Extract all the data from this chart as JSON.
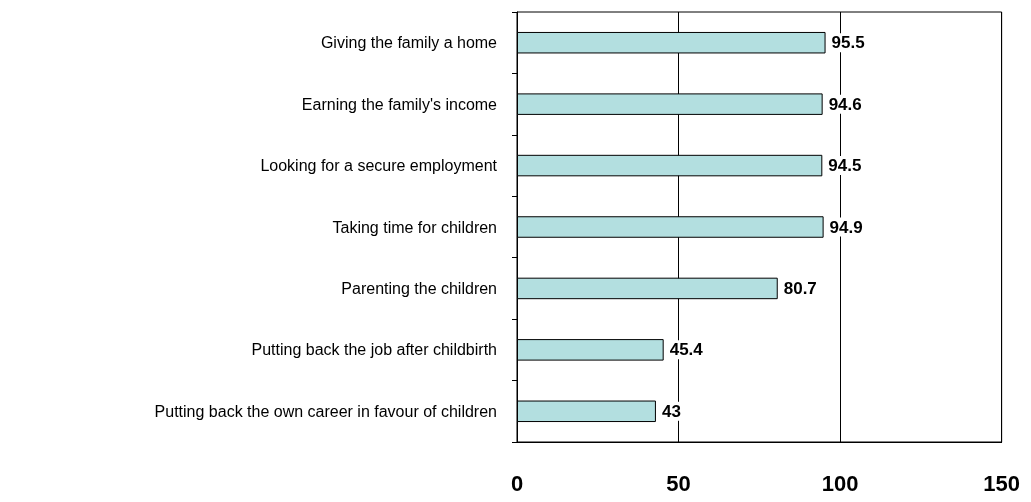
{
  "chart_data": {
    "type": "bar",
    "orientation": "horizontal",
    "categories": [
      "Giving the family a home",
      "Earning the family's income",
      "Looking for a secure employment",
      "Taking time for children",
      "Parenting the children",
      "Putting back the job after childbirth",
      "Putting back the own career in favour of children"
    ],
    "values": [
      95.5,
      94.6,
      94.5,
      94.9,
      80.7,
      45.4,
      43
    ],
    "color": "#b3dfe0",
    "xlim": [
      0,
      150
    ],
    "xticks": [
      0,
      50,
      100,
      150
    ],
    "grid": "x",
    "data_labels": true
  }
}
